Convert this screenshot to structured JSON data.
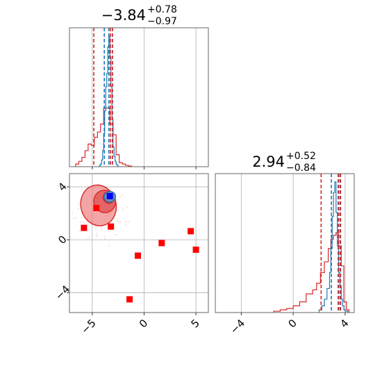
{
  "chart_data": {
    "type": "corner",
    "colors": {
      "red": "#d62728",
      "blue": "#1f77b4",
      "grid": "#b0b0b0",
      "red_fill": "#f08080",
      "marker_red": "#ff0000",
      "marker_blue": "#0000ff"
    },
    "param1": {
      "title": {
        "median": "−3.84",
        "plus": "+0.78",
        "minus": "−0.97"
      },
      "xlim": [
        -7.2,
        6.2
      ],
      "ticks": [
        -5,
        0,
        5
      ],
      "tick_labels": [
        "−5",
        "0",
        "5"
      ],
      "red_quantiles": [
        -4.85,
        -3.25,
        -3.05
      ],
      "blue_quantiles": [
        -3.84,
        -3.4,
        -3.06
      ],
      "red_hist": {
        "edges": [
          -6.6,
          -6.3,
          -6.0,
          -5.7,
          -5.4,
          -5.1,
          -4.8,
          -4.5,
          -4.2,
          -3.9,
          -3.6,
          -3.3,
          -3.0,
          -2.7,
          -2.4,
          -2.1,
          -1.8,
          -1.5,
          -1.2
        ],
        "counts": [
          0.02,
          0.04,
          0.07,
          0.12,
          0.17,
          0.16,
          0.22,
          0.26,
          0.32,
          0.44,
          0.44,
          0.32,
          0.24,
          0.09,
          0.03,
          0.02,
          0.01,
          0.005
        ]
      },
      "blue_hist": {
        "edges": [
          -4.3,
          -4.2,
          -4.1,
          -4.0,
          -3.9,
          -3.8,
          -3.7,
          -3.6,
          -3.5,
          -3.4,
          -3.3,
          -3.2,
          -3.1,
          -3.0,
          -2.9,
          -2.8,
          -2.7,
          -2.6,
          -2.5
        ],
        "counts": [
          0.01,
          0.02,
          0.05,
          0.12,
          0.25,
          0.42,
          0.6,
          0.7,
          0.9,
          0.98,
          0.82,
          0.6,
          0.35,
          0.15,
          0.08,
          0.04,
          0.02,
          0.01
        ]
      }
    },
    "param2": {
      "title": {
        "median": "2.94",
        "plus": "+0.52",
        "minus": "−0.84"
      },
      "xlim": [
        -6.0,
        4.7
      ],
      "ylim": [
        -5.5,
        5.0
      ],
      "ticks": [
        -4,
        0,
        4
      ],
      "tick_labels": [
        "−4",
        "0",
        "4"
      ],
      "red_quantiles": [
        2.15,
        3.5,
        3.65
      ],
      "blue_quantiles": [
        2.94,
        3.46,
        3.62
      ],
      "red_hist": {
        "edges": [
          -1.5,
          -1.0,
          -0.5,
          0.0,
          0.5,
          1.0,
          1.5,
          1.8,
          2.1,
          2.4,
          2.7,
          2.9,
          3.1,
          3.3,
          3.5,
          3.7,
          3.9,
          4.1,
          4.3
        ],
        "counts": [
          0.01,
          0.02,
          0.03,
          0.05,
          0.08,
          0.14,
          0.17,
          0.22,
          0.3,
          0.38,
          0.48,
          0.55,
          0.58,
          0.6,
          0.5,
          0.35,
          0.08,
          0.02
        ]
      },
      "blue_hist": {
        "edges": [
          2.0,
          2.2,
          2.4,
          2.6,
          2.8,
          2.9,
          3.0,
          3.1,
          3.2,
          3.3,
          3.4,
          3.5,
          3.6,
          3.7,
          3.8,
          3.9,
          4.0,
          4.2
        ],
        "counts": [
          0.02,
          0.05,
          0.1,
          0.18,
          0.3,
          0.48,
          0.72,
          0.9,
          0.98,
          0.75,
          0.5,
          0.3,
          0.2,
          0.1,
          0.05,
          0.02,
          0.01
        ]
      }
    },
    "scatter_2d": {
      "red_points": [
        [
          -5.8,
          0.9
        ],
        [
          -4.6,
          2.4
        ],
        [
          -3.2,
          1.0
        ],
        [
          -0.6,
          -1.2
        ],
        [
          1.7,
          -0.25
        ],
        [
          4.5,
          0.65
        ],
        [
          5.0,
          -0.75
        ],
        [
          -1.4,
          -4.5
        ]
      ],
      "blue_points": [
        [
          -3.3,
          3.3
        ]
      ],
      "contours": {
        "outer": {
          "cx": -4.4,
          "cy": 2.6,
          "rx": 1.7,
          "ry": 1.55,
          "rot": -0.25
        },
        "middle": {
          "cx": -3.8,
          "cy": 2.9,
          "rx": 1.05,
          "ry": 0.85,
          "rot": -0.3
        },
        "inner": {
          "cx": -3.4,
          "cy": 3.2,
          "rx": 0.55,
          "ry": 0.45,
          "rot": -0.2
        },
        "blue": {
          "cx": -3.3,
          "cy": 3.25,
          "rx": 0.55,
          "ry": 0.4,
          "rot": -0.15
        }
      }
    }
  }
}
